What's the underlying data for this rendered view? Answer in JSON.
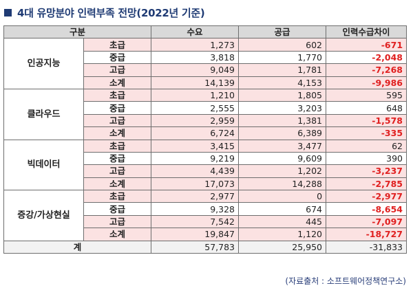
{
  "title": "4대 유망분야 인력부족 전망(2022년 기준)",
  "headers": [
    "구분",
    "수요",
    "공급",
    "인력수급차이"
  ],
  "categories": [
    {
      "name": "인공지능",
      "rows": [
        {
          "level": "초급",
          "demand": "1,273",
          "supply": "602",
          "gap": "-671",
          "gap_negative": true
        },
        {
          "level": "중급",
          "demand": "3,818",
          "supply": "1,770",
          "gap": "-2,048",
          "gap_negative": true
        },
        {
          "level": "고급",
          "demand": "9,049",
          "supply": "1,781",
          "gap": "-7,268",
          "gap_negative": true
        },
        {
          "level": "소계",
          "demand": "14,139",
          "supply": "4,153",
          "gap": "-9,986",
          "gap_negative": true
        }
      ]
    },
    {
      "name": "클라우드",
      "rows": [
        {
          "level": "초급",
          "demand": "1,210",
          "supply": "1,805",
          "gap": "595",
          "gap_negative": false
        },
        {
          "level": "중급",
          "demand": "2,555",
          "supply": "3,203",
          "gap": "648",
          "gap_negative": false
        },
        {
          "level": "고급",
          "demand": "2,959",
          "supply": "1,381",
          "gap": "-1,578",
          "gap_negative": true
        },
        {
          "level": "소계",
          "demand": "6,724",
          "supply": "6,389",
          "gap": "-335",
          "gap_negative": true
        }
      ]
    },
    {
      "name": "빅데이터",
      "rows": [
        {
          "level": "초급",
          "demand": "3,415",
          "supply": "3,477",
          "gap": "62",
          "gap_negative": false
        },
        {
          "level": "중급",
          "demand": "9,219",
          "supply": "9,609",
          "gap": "390",
          "gap_negative": false
        },
        {
          "level": "고급",
          "demand": "4,439",
          "supply": "1,202",
          "gap": "-3,237",
          "gap_negative": true
        },
        {
          "level": "소계",
          "demand": "17,073",
          "supply": "14,288",
          "gap": "-2,785",
          "gap_negative": true
        }
      ]
    },
    {
      "name": "증강/가상현실",
      "rows": [
        {
          "level": "초급",
          "demand": "2,977",
          "supply": "0",
          "gap": "-2,977",
          "gap_negative": true
        },
        {
          "level": "중급",
          "demand": "9,328",
          "supply": "674",
          "gap": "-8,654",
          "gap_negative": true
        },
        {
          "level": "고급",
          "demand": "7,542",
          "supply": "445",
          "gap": "-7,097",
          "gap_negative": true
        },
        {
          "level": "소계",
          "demand": "19,847",
          "supply": "1,120",
          "gap": "-18,727",
          "gap_negative": true
        }
      ]
    }
  ],
  "total": {
    "label": "계",
    "demand": "57,783",
    "supply": "25,950",
    "gap": "-31,833"
  },
  "source": "(자료출처 : 소프트웨어정책연구소)",
  "colors": {
    "title": "#1f3b74",
    "header_bg": "#d9d9d9",
    "highlight_bg": "#fbe2e2",
    "negative": "#e02020"
  }
}
